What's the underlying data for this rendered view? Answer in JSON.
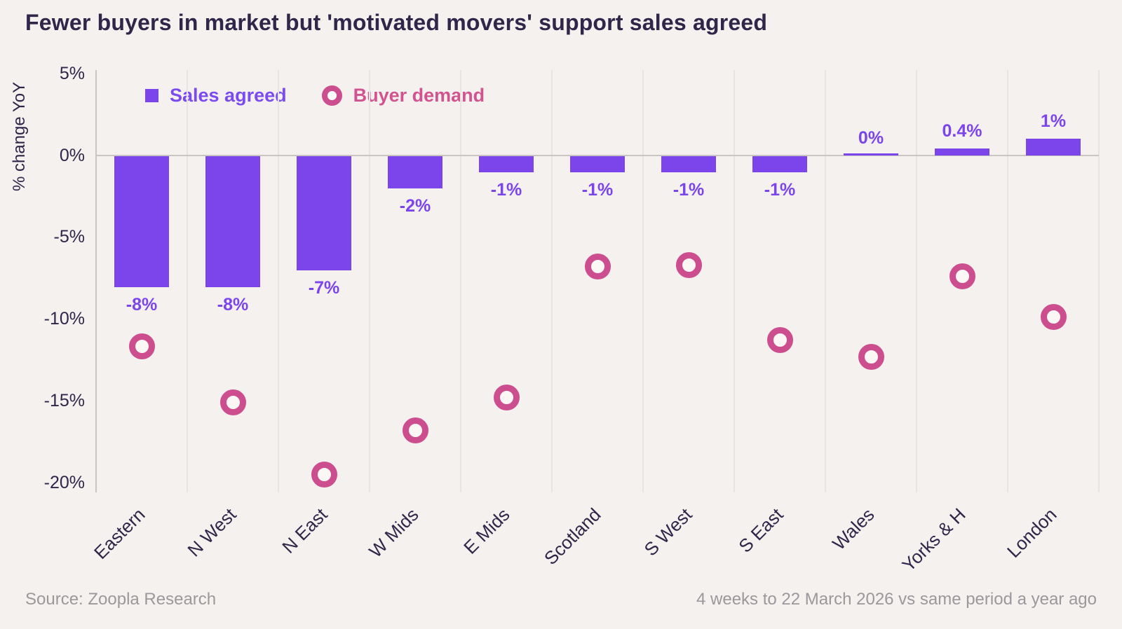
{
  "title": "Fewer buyers in market but 'motivated movers' support sales agreed",
  "legend": {
    "sales_agreed": "Sales agreed",
    "buyer_demand": "Buyer demand"
  },
  "y_axis": {
    "label": "% change YoY"
  },
  "footer": {
    "source": "Source: Zoopla Research",
    "period": "4 weeks to 22 March 2026 vs same period a year ago"
  },
  "colors": {
    "background": "#F4F1EF",
    "bar_purple": "#7C45EC",
    "demand_pink": "#CD4E8E",
    "title_text": "#2F2649",
    "axis_text": "#2F2649",
    "gridline": "#E7E4E1",
    "zero_line": "#C8C5C2",
    "footer_text": "#9B989C"
  },
  "chart_data": {
    "type": "bar",
    "title": "Fewer buyers in market but 'motivated movers' support sales agreed",
    "categories": [
      "Eastern",
      "N West",
      "N East",
      "W Mids",
      "E Mids",
      "Scotland",
      "S West",
      "S East",
      "Wales",
      "Yorks & H",
      "London"
    ],
    "series": [
      {
        "name": "Sales agreed",
        "type": "bar",
        "values": [
          -8,
          -8,
          -7,
          -2,
          -1,
          -1,
          -1,
          -1,
          0,
          0.4,
          1
        ],
        "labels": [
          "-8%",
          "-8%",
          "-7%",
          "-2%",
          "-1%",
          "-1%",
          "-1%",
          "-1%",
          "0%",
          "0.4%",
          "1%"
        ]
      },
      {
        "name": "Buyer demand",
        "type": "scatter",
        "values": [
          -11.7,
          -15.1,
          -19.5,
          -16.8,
          -14.8,
          -6.8,
          -6.7,
          -11.3,
          -12.3,
          -7.4,
          -9.9
        ]
      }
    ],
    "xlabel": "",
    "ylabel": "% change YoY",
    "ylim": [
      -20.6,
      5.2
    ],
    "yticks": [
      5,
      0,
      -5,
      -10,
      -15,
      -20
    ],
    "ytick_labels": [
      "5%",
      "0%",
      "-5%",
      "-10%",
      "-15%",
      "-20%"
    ],
    "grid": "vertical-column-separators-only",
    "legend_position": "top-left-inside"
  }
}
